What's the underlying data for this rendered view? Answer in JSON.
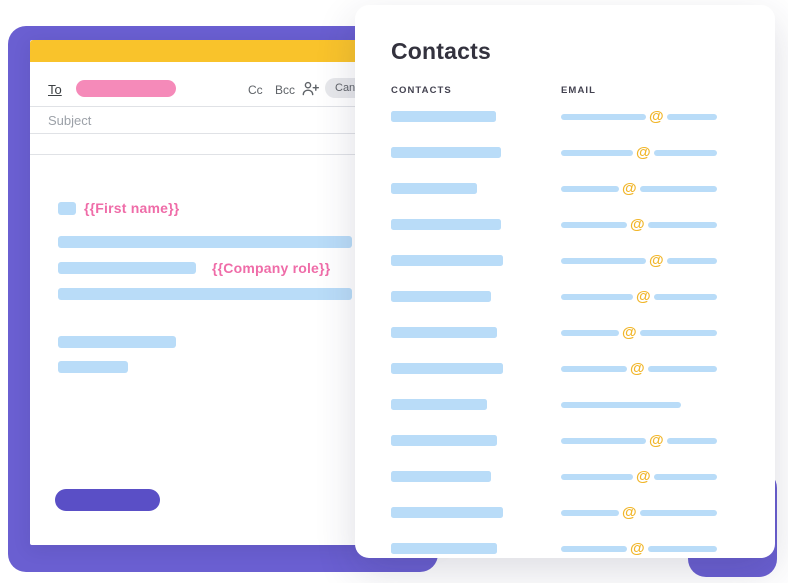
{
  "accents": {
    "purple": "#6A5FD1",
    "purple_button": "#5A4FC6",
    "yellow_header": "#F9C32B",
    "pink_chip": "#F58AB9",
    "pink_text": "#EF6CA8",
    "skeleton_blue": "#B9DCF8",
    "at_gold": "#F1B62A",
    "divider_gray": "#E0E2E6",
    "label_gray": "#5F6368",
    "placeholder_gray": "#9CA1A8",
    "title_color": "#33323E"
  },
  "email_card": {
    "to_label": "To",
    "cc_label": "Cc",
    "bcc_label": "Bcc",
    "candidates_label": "Cand",
    "subject_placeholder": "Subject",
    "icons": {
      "add_recipient": "person-add"
    },
    "body": {
      "first_name_token": "{{First name}}",
      "company_role_token": "{{Company role}}"
    }
  },
  "contacts_card": {
    "title": "Contacts",
    "columns": {
      "contacts": "CONTACTS",
      "email": "EMAIL"
    },
    "at_symbol": "@",
    "rows": [
      {
        "contact_w": 105,
        "pre_w": 85,
        "post_w": 50,
        "has_at": true
      },
      {
        "contact_w": 110,
        "pre_w": 72,
        "post_w": 63,
        "has_at": true
      },
      {
        "contact_w": 86,
        "pre_w": 58,
        "post_w": 77,
        "has_at": true
      },
      {
        "contact_w": 110,
        "pre_w": 66,
        "post_w": 69,
        "has_at": true
      },
      {
        "contact_w": 112,
        "pre_w": 85,
        "post_w": 50,
        "has_at": true
      },
      {
        "contact_w": 100,
        "pre_w": 72,
        "post_w": 63,
        "has_at": true
      },
      {
        "contact_w": 106,
        "pre_w": 58,
        "post_w": 77,
        "has_at": true
      },
      {
        "contact_w": 112,
        "pre_w": 66,
        "post_w": 69,
        "has_at": true
      },
      {
        "contact_w": 96,
        "pre_w": 120,
        "post_w": 0,
        "has_at": false
      },
      {
        "contact_w": 106,
        "pre_w": 85,
        "post_w": 50,
        "has_at": true
      },
      {
        "contact_w": 100,
        "pre_w": 72,
        "post_w": 63,
        "has_at": true
      },
      {
        "contact_w": 112,
        "pre_w": 58,
        "post_w": 77,
        "has_at": true
      },
      {
        "contact_w": 106,
        "pre_w": 66,
        "post_w": 69,
        "has_at": true
      }
    ]
  }
}
